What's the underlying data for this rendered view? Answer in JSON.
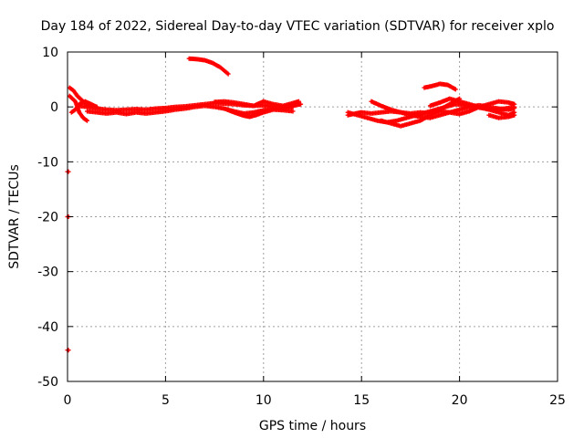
{
  "chart_data": {
    "type": "scatter",
    "title": "Day 184 of 2022, Sidereal Day-to-day VTEC variation (SDTVAR) for receiver xplo",
    "xlabel": "GPS time / hours",
    "ylabel": "SDTVAR / TECUs",
    "xlim": [
      0,
      25
    ],
    "ylim": [
      -50,
      10
    ],
    "grid": true,
    "x_ticks": [
      "0",
      "5",
      "10",
      "15",
      "20",
      "25"
    ],
    "y_ticks": [
      "10",
      "0",
      "-10",
      "-20",
      "-30",
      "-40",
      "-50"
    ],
    "series": [
      {
        "name": "SDTVAR",
        "color": "#ff0000",
        "tracks": [
          {
            "x": [
              0.1,
              0.3,
              0.5,
              0.8,
              1.0,
              1.3
            ],
            "y": [
              3.5,
              3.0,
              2.0,
              1.0,
              0.3,
              0.0
            ]
          },
          {
            "x": [
              0.1,
              0.4,
              0.6,
              0.8,
              1.0
            ],
            "y": [
              2.0,
              1.0,
              -1.0,
              -2.0,
              -2.5
            ]
          },
          {
            "x": [
              0.2,
              0.4,
              0.6,
              0.9,
              1.2,
              1.5
            ],
            "y": [
              -1.0,
              -0.5,
              0.5,
              1.0,
              0.5,
              0.0
            ]
          },
          {
            "x": [
              0.5,
              1.0,
              1.5,
              2.0,
              2.5,
              3.0,
              3.5,
              4.0,
              4.5,
              5.0,
              5.5,
              6.0,
              6.5,
              7.0,
              7.5,
              8.0,
              8.5,
              9.0,
              9.5,
              10.0,
              10.5,
              11.0,
              11.5,
              11.9
            ],
            "y": [
              0.2,
              0.0,
              -0.3,
              -0.5,
              -0.6,
              -0.5,
              -0.4,
              -0.5,
              -0.3,
              -0.2,
              0.0,
              0.1,
              0.3,
              0.5,
              0.7,
              0.6,
              0.5,
              0.3,
              0.2,
              0.3,
              0.0,
              -0.2,
              0.2,
              0.5
            ]
          },
          {
            "x": [
              1.0,
              1.5,
              2.0,
              2.5,
              3.0,
              3.5,
              4.0,
              4.5,
              5.0,
              5.5,
              6.0,
              6.5,
              7.0,
              7.5,
              8.0,
              8.5,
              9.0,
              9.5,
              10.0,
              10.5,
              11.0,
              11.5
            ],
            "y": [
              -0.8,
              -1.0,
              -1.2,
              -1.0,
              -1.3,
              -1.0,
              -1.2,
              -1.0,
              -0.8,
              -0.5,
              -0.3,
              0.0,
              0.2,
              0.0,
              -0.3,
              -0.8,
              -1.2,
              -1.0,
              -0.6,
              -0.3,
              -0.2,
              0.0
            ]
          },
          {
            "x": [
              7.5,
              8.0,
              8.5,
              9.0,
              9.5,
              10.0,
              10.5,
              11.0,
              11.5,
              11.8
            ],
            "y": [
              0.9,
              1.0,
              0.8,
              0.5,
              0.2,
              1.0,
              0.5,
              0.2,
              0.7,
              1.0
            ]
          },
          {
            "x": [
              8.0,
              8.5,
              9.0,
              9.3,
              9.6,
              10.0,
              10.5,
              11.0,
              11.5
            ],
            "y": [
              -0.3,
              -1.0,
              -1.6,
              -1.8,
              -1.5,
              -1.0,
              -0.5,
              -0.6,
              -0.8
            ]
          },
          {
            "x": [
              6.2,
              6.6,
              7.0,
              7.4,
              7.8,
              8.2
            ],
            "y": [
              8.8,
              8.7,
              8.5,
              8.0,
              7.2,
              6.0
            ]
          },
          {
            "x": [
              14.3,
              14.8,
              15.3,
              15.8,
              16.3,
              16.8,
              17.3,
              17.8,
              18.3,
              18.8,
              19.3,
              19.8,
              20.3,
              20.8,
              21.3,
              21.8,
              22.3,
              22.8
            ],
            "y": [
              -1.0,
              -1.5,
              -2.0,
              -2.5,
              -2.8,
              -2.5,
              -2.0,
              -1.5,
              -1.0,
              -0.5,
              0.0,
              0.5,
              0.3,
              0.0,
              -0.3,
              -0.5,
              -0.3,
              0.0
            ]
          },
          {
            "x": [
              14.3,
              14.7,
              15.0,
              15.5,
              16.0,
              16.5,
              17.0,
              17.5,
              18.0,
              18.5,
              19.0,
              19.5,
              20.0,
              20.5,
              21.0,
              21.5,
              22.0,
              22.5,
              22.8
            ],
            "y": [
              -1.5,
              -1.2,
              -1.0,
              -1.2,
              -1.0,
              -0.8,
              -1.0,
              -1.2,
              -1.0,
              -1.2,
              -0.8,
              -1.0,
              -1.3,
              -0.8,
              0.0,
              0.5,
              1.0,
              0.8,
              0.5
            ]
          },
          {
            "x": [
              15.5,
              16.0,
              16.5,
              17.0,
              17.5,
              18.0,
              18.5,
              19.0,
              19.5,
              20.0,
              20.5,
              21.0,
              21.5,
              22.0,
              22.5,
              22.8
            ],
            "y": [
              1.0,
              0.2,
              -0.5,
              -1.0,
              -1.5,
              -1.8,
              -2.0,
              -1.5,
              -1.0,
              -0.5,
              0.0,
              0.3,
              0.0,
              -0.3,
              -0.5,
              -0.2
            ]
          },
          {
            "x": [
              16.0,
              16.5,
              17.0,
              17.5,
              18.0,
              18.5,
              19.0,
              19.5,
              20.0
            ],
            "y": [
              -2.5,
              -3.0,
              -3.5,
              -3.0,
              -2.5,
              -1.5,
              -0.5,
              0.5,
              1.5
            ]
          },
          {
            "x": [
              21.5,
              22.0,
              22.5,
              22.8
            ],
            "y": [
              -1.5,
              -2.0,
              -1.8,
              -1.5
            ]
          },
          {
            "x": [
              18.2,
              18.6,
              19.0,
              19.4,
              19.8
            ],
            "y": [
              3.5,
              3.8,
              4.2,
              4.0,
              3.2
            ]
          },
          {
            "x": [
              18.5,
              19.0,
              19.5,
              20.0,
              20.5,
              21.0,
              21.5,
              22.0,
              22.5,
              22.8
            ],
            "y": [
              0.2,
              0.8,
              1.5,
              1.0,
              0.5,
              0.0,
              -0.5,
              -1.0,
              -1.5,
              -1.0
            ]
          },
          {
            "x": [
              0.0,
              0.05
            ],
            "y": [
              -11.8,
              -11.8
            ]
          },
          {
            "x": [
              0.0,
              0.05
            ],
            "y": [
              -20.0,
              -20.0
            ]
          },
          {
            "x": [
              0.0,
              0.05
            ],
            "y": [
              -44.3,
              -44.3
            ]
          }
        ]
      }
    ]
  }
}
